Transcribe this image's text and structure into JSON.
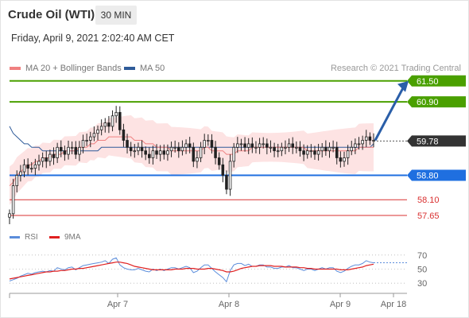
{
  "header": {
    "instrument": "Crude Oil (WTI)",
    "timeframe": "30 MIN",
    "datetime": "Friday, April 9, 2021 2:02:40 AM CET"
  },
  "legend": {
    "ma20_label": "MA 20 + Bollinger Bands",
    "ma50_label": "MA 50",
    "copyright": "Research © 2021 Trading Central"
  },
  "rsi_legend": {
    "rsi_label": "RSI",
    "ma_label": "9MA"
  },
  "colors": {
    "ma20": "#f08080",
    "ma50": "#2f5b99",
    "resistance": "#4aa000",
    "support": "#1f6fe0",
    "support_minor": "#d93030",
    "current": "#333333",
    "bollinger_fill": "#fde3e3",
    "candle": "#222222",
    "arrow": "#2a5ea8",
    "rsi": "#5b8ddb",
    "rsi_ma": "#e02020"
  },
  "chart_data": [
    {
      "type": "candlestick",
      "ylim": [
        57.4,
        61.7
      ],
      "x_ticks": [
        "Apr 7",
        "Apr 8",
        "Apr 9",
        "Apr 18"
      ],
      "levels": [
        {
          "name": "resistance-2",
          "label": "61.50",
          "value": 61.5,
          "kind": "resistance"
        },
        {
          "name": "resistance-1",
          "label": "60.90",
          "value": 60.9,
          "kind": "resistance"
        },
        {
          "name": "current-price",
          "label": "59.78",
          "value": 59.78,
          "kind": "current"
        },
        {
          "name": "support-1",
          "label": "58.80",
          "value": 58.8,
          "kind": "support"
        },
        {
          "name": "support-2",
          "label": "58.10",
          "value": 58.1,
          "kind": "support_minor"
        },
        {
          "name": "support-3",
          "label": "57.65",
          "value": 57.65,
          "kind": "support_minor"
        }
      ],
      "close": [
        57.7,
        58.5,
        58.8,
        58.9,
        59.1,
        59.0,
        59.0,
        59.1,
        59.2,
        59.3,
        59.2,
        59.4,
        59.3,
        59.6,
        59.5,
        59.4,
        59.6,
        59.6,
        59.4,
        59.6,
        59.8,
        59.8,
        59.9,
        60.0,
        60.1,
        60.2,
        60.3,
        60.2,
        60.5,
        60.6,
        60.1,
        59.8,
        59.6,
        59.5,
        59.5,
        59.6,
        59.5,
        59.4,
        59.3,
        59.5,
        59.4,
        59.5,
        59.4,
        59.5,
        59.6,
        59.6,
        59.5,
        59.6,
        59.7,
        59.6,
        59.2,
        59.3,
        59.6,
        59.8,
        59.8,
        59.6,
        59.3,
        59.1,
        58.8,
        58.4,
        59.2,
        59.6,
        59.7,
        59.7,
        59.6,
        59.7,
        59.6,
        59.6,
        59.7,
        59.7,
        59.6,
        59.6,
        59.5,
        59.5,
        59.6,
        59.6,
        59.7,
        59.6,
        59.6,
        59.5,
        59.4,
        59.5,
        59.5,
        59.4,
        59.5,
        59.6,
        59.5,
        59.6,
        59.6,
        59.3,
        59.2,
        59.3,
        59.5,
        59.6,
        59.7,
        59.7,
        59.8,
        59.9,
        59.8,
        59.8
      ],
      "ma20": [
        58.5,
        58.6,
        58.8,
        58.9,
        59.0,
        59.1,
        59.1,
        59.2,
        59.2,
        59.3,
        59.3,
        59.3,
        59.4,
        59.4,
        59.4,
        59.5,
        59.5,
        59.5,
        59.5,
        59.6,
        59.6,
        59.6,
        59.7,
        59.7,
        59.8,
        59.8,
        59.8,
        59.9,
        59.9,
        59.9,
        59.9,
        59.9,
        59.9,
        59.9,
        59.8,
        59.8,
        59.8,
        59.7,
        59.7,
        59.7,
        59.6,
        59.6,
        59.6,
        59.6,
        59.5,
        59.5,
        59.5,
        59.5,
        59.5,
        59.5,
        59.5,
        59.5,
        59.5,
        59.6,
        59.6,
        59.5,
        59.5,
        59.5,
        59.5,
        59.4,
        59.4,
        59.4,
        59.5,
        59.5,
        59.5,
        59.5,
        59.6,
        59.6,
        59.6,
        59.6,
        59.6,
        59.6,
        59.6,
        59.6,
        59.6,
        59.6,
        59.6,
        59.6,
        59.6,
        59.6,
        59.6,
        59.5,
        59.5,
        59.5,
        59.5,
        59.5,
        59.5,
        59.5,
        59.5,
        59.5,
        59.5,
        59.5,
        59.5,
        59.5,
        59.5,
        59.6,
        59.6,
        59.6,
        59.6,
        59.6
      ],
      "ma50": [
        60.2,
        60.0,
        59.9,
        59.8,
        59.7,
        59.7,
        59.6,
        59.6,
        59.6,
        59.5,
        59.5,
        59.5,
        59.5,
        59.5,
        59.5,
        59.5,
        59.5,
        59.5,
        59.5,
        59.5,
        59.5,
        59.5,
        59.5,
        59.5,
        59.5,
        59.6,
        59.6,
        59.6,
        59.6,
        59.6,
        59.6,
        59.6,
        59.6,
        59.6,
        59.6,
        59.6,
        59.6,
        59.6,
        59.6,
        59.6,
        59.6,
        59.6,
        59.6,
        59.6,
        59.6,
        59.6,
        59.6,
        59.6,
        59.6,
        59.6,
        59.6,
        59.6,
        59.6,
        59.6,
        59.6,
        59.6,
        59.6,
        59.6,
        59.6,
        59.6,
        59.6,
        59.6,
        59.6,
        59.6,
        59.6,
        59.6,
        59.6,
        59.6,
        59.6,
        59.6,
        59.6,
        59.6,
        59.6,
        59.6,
        59.6,
        59.6,
        59.6,
        59.6,
        59.6,
        59.6,
        59.6,
        59.6,
        59.6,
        59.6,
        59.6,
        59.6,
        59.6,
        59.6,
        59.6,
        59.6,
        59.6,
        59.6,
        59.6,
        59.6,
        59.6,
        59.6,
        59.6,
        59.6,
        59.6,
        59.7
      ]
    },
    {
      "type": "line",
      "title": "RSI",
      "ylim": [
        20,
        80
      ],
      "y_ticks": [
        70,
        50,
        30
      ],
      "rsi": [
        33,
        35,
        37,
        40,
        42,
        44,
        43,
        45,
        46,
        47,
        46,
        48,
        47,
        52,
        50,
        49,
        52,
        53,
        49,
        52,
        55,
        56,
        57,
        58,
        59,
        60,
        62,
        58,
        64,
        66,
        56,
        52,
        50,
        49,
        49,
        51,
        49,
        47,
        46,
        50,
        48,
        50,
        48,
        50,
        52,
        52,
        50,
        52,
        54,
        52,
        45,
        47,
        52,
        56,
        56,
        51,
        46,
        42,
        38,
        32,
        48,
        56,
        58,
        58,
        55,
        57,
        54,
        54,
        56,
        56,
        53,
        53,
        51,
        51,
        53,
        53,
        55,
        52,
        52,
        50,
        48,
        50,
        50,
        48,
        50,
        52,
        50,
        52,
        52,
        47,
        45,
        47,
        51,
        54,
        56,
        56,
        58,
        62,
        60,
        59
      ],
      "rsi_ma": [
        36,
        37,
        38,
        39,
        40,
        41,
        42,
        43,
        44,
        45,
        46,
        46,
        47,
        47,
        48,
        48,
        49,
        50,
        50,
        51,
        51,
        52,
        53,
        54,
        55,
        56,
        57,
        58,
        59,
        60,
        60,
        59,
        58,
        56,
        54,
        53,
        52,
        51,
        50,
        49,
        49,
        49,
        49,
        49,
        49,
        50,
        50,
        50,
        51,
        51,
        51,
        50,
        50,
        50,
        51,
        51,
        50,
        49,
        48,
        46,
        46,
        47,
        49,
        51,
        52,
        53,
        54,
        54,
        55,
        55,
        55,
        55,
        54,
        54,
        54,
        53,
        53,
        53,
        53,
        52,
        52,
        51,
        51,
        50,
        50,
        50,
        50,
        50,
        50,
        50,
        49,
        49,
        49,
        50,
        51,
        52,
        53,
        55,
        56,
        57
      ]
    }
  ]
}
